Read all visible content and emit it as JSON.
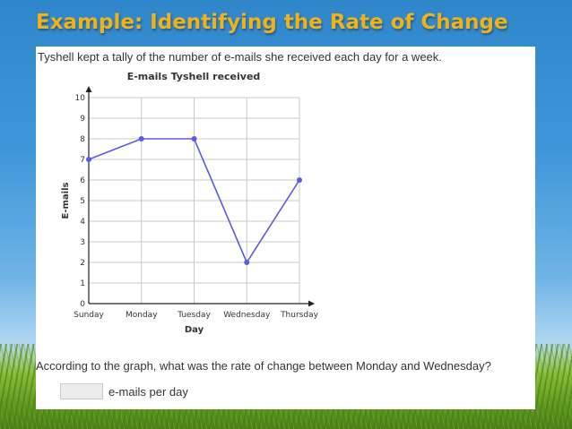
{
  "slide": {
    "title": "Example: Identifying the Rate of Change"
  },
  "problem": {
    "intro": "Tyshell kept a tally of the number of e-mails she received each day for a week.",
    "question": "According to the graph, what was the rate of change between Monday and Wednesday?",
    "answer_value": "",
    "answer_unit": "e-mails per day"
  },
  "colors": {
    "accent": "#f0b21a",
    "series": "#5b5be0"
  },
  "chart_data": {
    "type": "line",
    "title": "E-mails Tyshell received",
    "xlabel": "Day",
    "ylabel": "E-mails",
    "categories": [
      "Sunday",
      "Monday",
      "Tuesday",
      "Wednesday",
      "Thursday"
    ],
    "series": [
      {
        "values": [
          7,
          8,
          8,
          2,
          6
        ]
      }
    ],
    "yticks": [
      0,
      1,
      2,
      3,
      4,
      5,
      6,
      7,
      8,
      9,
      10
    ],
    "ylim": [
      0,
      10
    ],
    "grid": true
  }
}
